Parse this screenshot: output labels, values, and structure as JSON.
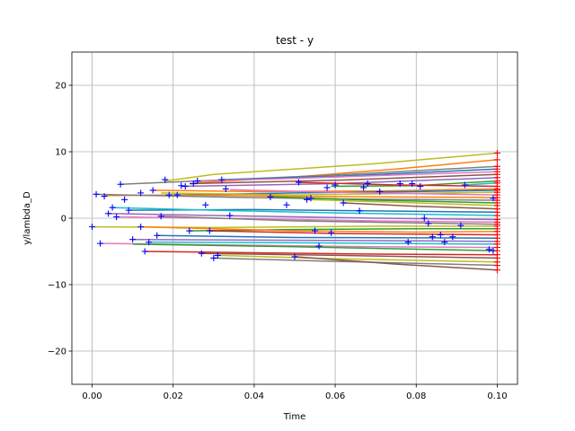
{
  "chart_data": {
    "type": "line",
    "title": "test - y",
    "xlabel": "Time",
    "ylabel": "y/lambda_D",
    "xlim": [
      -0.005,
      0.105
    ],
    "ylim": [
      -25,
      25
    ],
    "xticks": [
      0.0,
      0.02,
      0.04,
      0.06,
      0.08,
      0.1
    ],
    "xtick_labels": [
      "0.00",
      "0.02",
      "0.04",
      "0.06",
      "0.08",
      "0.10"
    ],
    "yticks": [
      -20,
      -10,
      0,
      10,
      20
    ],
    "ytick_labels": [
      "−20",
      "−10",
      "0",
      "10",
      "20"
    ],
    "grid": true,
    "marker_color": "#0000ff",
    "end_marker_color": "#ff0000",
    "series": [
      {
        "color": "#bcbd22",
        "points": [
          [
            0.018,
            5.6
          ],
          [
            0.03,
            6.6
          ],
          [
            0.05,
            7.4
          ],
          [
            0.07,
            8.2
          ],
          [
            0.085,
            9.0
          ],
          [
            0.1,
            9.8
          ]
        ]
      },
      {
        "color": "#ff7f0e",
        "points": [
          [
            0.025,
            5.3
          ],
          [
            0.05,
            6.2
          ],
          [
            0.075,
            7.4
          ],
          [
            0.1,
            8.8
          ]
        ]
      },
      {
        "color": "#7f7f7f",
        "points": [
          [
            0.007,
            5.1
          ],
          [
            0.03,
            5.7
          ],
          [
            0.06,
            6.5
          ],
          [
            0.1,
            7.8
          ]
        ]
      },
      {
        "color": "#1f77b4",
        "points": [
          [
            0.032,
            5.8
          ],
          [
            0.06,
            6.3
          ],
          [
            0.1,
            7.4
          ]
        ]
      },
      {
        "color": "#e377c2",
        "points": [
          [
            0.027,
            5.6
          ],
          [
            0.05,
            6.0
          ],
          [
            0.1,
            7.0
          ]
        ]
      },
      {
        "color": "#8c564b",
        "points": [
          [
            0.024,
            5.2
          ],
          [
            0.06,
            5.7
          ],
          [
            0.1,
            6.6
          ]
        ]
      },
      {
        "color": "#9467bd",
        "points": [
          [
            0.022,
            4.8
          ],
          [
            0.06,
            5.2
          ],
          [
            0.1,
            6.1
          ]
        ]
      },
      {
        "color": "#2ca02c",
        "points": [
          [
            0.059,
            4.8
          ],
          [
            0.08,
            4.9
          ],
          [
            0.1,
            5.6
          ]
        ]
      },
      {
        "color": "#17becf",
        "points": [
          [
            0.092,
            5.0
          ],
          [
            0.1,
            5.3
          ]
        ]
      },
      {
        "color": "#d62728",
        "points": [
          [
            0.051,
            5.4
          ],
          [
            0.075,
            5.0
          ],
          [
            0.1,
            4.8
          ]
        ]
      },
      {
        "color": "#ff7f0e",
        "points": [
          [
            0.015,
            4.2
          ],
          [
            0.04,
            4.0
          ],
          [
            0.07,
            4.1
          ],
          [
            0.1,
            4.4
          ]
        ]
      },
      {
        "color": "#1f77b4",
        "points": [
          [
            0.02,
            3.5
          ],
          [
            0.05,
            3.8
          ],
          [
            0.08,
            4.0
          ],
          [
            0.1,
            4.2
          ]
        ]
      },
      {
        "color": "#bcbd22",
        "points": [
          [
            0.017,
            3.8
          ],
          [
            0.05,
            3.5
          ],
          [
            0.1,
            3.9
          ]
        ]
      },
      {
        "color": "#e377c2",
        "points": [
          [
            0.034,
            4.3
          ],
          [
            0.06,
            3.9
          ],
          [
            0.1,
            3.5
          ]
        ]
      },
      {
        "color": "#ff7f0e",
        "points": [
          [
            0.003,
            3.4
          ],
          [
            0.02,
            3.5
          ],
          [
            0.05,
            3.3
          ],
          [
            0.1,
            3.1
          ]
        ]
      },
      {
        "color": "#7f7f7f",
        "points": [
          [
            0.001,
            3.6
          ],
          [
            0.03,
            3.2
          ],
          [
            0.06,
            2.9
          ],
          [
            0.1,
            2.7
          ]
        ]
      },
      {
        "color": "#2ca02c",
        "points": [
          [
            0.044,
            3.2
          ],
          [
            0.07,
            2.7
          ],
          [
            0.1,
            2.3
          ]
        ]
      },
      {
        "color": "#bcbd22",
        "points": [
          [
            0.053,
            2.8
          ],
          [
            0.08,
            2.3
          ],
          [
            0.1,
            1.9
          ]
        ]
      },
      {
        "color": "#8c564b",
        "points": [
          [
            0.062,
            2.3
          ],
          [
            0.08,
            1.8
          ],
          [
            0.1,
            1.4
          ]
        ]
      },
      {
        "color": "#1f77b4",
        "points": [
          [
            0.009,
            1.2
          ],
          [
            0.04,
            1.3
          ],
          [
            0.07,
            1.1
          ],
          [
            0.1,
            0.9
          ]
        ]
      },
      {
        "color": "#17becf",
        "points": [
          [
            0.005,
            1.6
          ],
          [
            0.03,
            1.2
          ],
          [
            0.06,
            0.8
          ],
          [
            0.1,
            0.4
          ]
        ]
      },
      {
        "color": "#9467bd",
        "points": [
          [
            0.004,
            0.7
          ],
          [
            0.03,
            0.4
          ],
          [
            0.07,
            0.0
          ],
          [
            0.1,
            -0.2
          ]
        ]
      },
      {
        "color": "#e377c2",
        "points": [
          [
            0.006,
            0.2
          ],
          [
            0.04,
            -0.1
          ],
          [
            0.07,
            -0.4
          ],
          [
            0.1,
            -0.6
          ]
        ]
      },
      {
        "color": "#7f7f7f",
        "points": [
          [
            0.017,
            0.3
          ],
          [
            0.05,
            -0.4
          ],
          [
            0.08,
            -0.7
          ],
          [
            0.1,
            -0.9
          ]
        ]
      },
      {
        "color": "#bcbd22",
        "points": [
          [
            0.0,
            -1.3
          ],
          [
            0.03,
            -1.4
          ],
          [
            0.07,
            -1.2
          ],
          [
            0.1,
            -1.2
          ]
        ]
      },
      {
        "color": "#2ca02c",
        "points": [
          [
            0.024,
            -1.9
          ],
          [
            0.05,
            -1.7
          ],
          [
            0.08,
            -1.6
          ],
          [
            0.1,
            -1.6
          ]
        ]
      },
      {
        "color": "#ff7f0e",
        "points": [
          [
            0.012,
            -1.3
          ],
          [
            0.05,
            -1.9
          ],
          [
            0.08,
            -2.1
          ],
          [
            0.1,
            -2.0
          ]
        ]
      },
      {
        "color": "#d62728",
        "points": [
          [
            0.029,
            -1.9
          ],
          [
            0.06,
            -2.3
          ],
          [
            0.1,
            -2.5
          ]
        ]
      },
      {
        "color": "#1f77b4",
        "points": [
          [
            0.016,
            -2.6
          ],
          [
            0.05,
            -2.9
          ],
          [
            0.1,
            -3.0
          ]
        ]
      },
      {
        "color": "#9467bd",
        "points": [
          [
            0.01,
            -3.2
          ],
          [
            0.04,
            -3.3
          ],
          [
            0.08,
            -3.4
          ],
          [
            0.1,
            -3.5
          ]
        ]
      },
      {
        "color": "#17becf",
        "points": [
          [
            0.014,
            -3.6
          ],
          [
            0.05,
            -3.7
          ],
          [
            0.1,
            -3.9
          ]
        ]
      },
      {
        "color": "#e377c2",
        "points": [
          [
            0.002,
            -3.8
          ],
          [
            0.03,
            -4.0
          ],
          [
            0.07,
            -4.3
          ],
          [
            0.1,
            -4.4
          ]
        ]
      },
      {
        "color": "#2ca02c",
        "points": [
          [
            0.01,
            -3.9
          ],
          [
            0.05,
            -4.3
          ],
          [
            0.1,
            -4.9
          ]
        ]
      },
      {
        "color": "#d62728",
        "points": [
          [
            0.013,
            -5.0
          ],
          [
            0.04,
            -5.2
          ],
          [
            0.07,
            -5.4
          ],
          [
            0.1,
            -5.5
          ]
        ]
      },
      {
        "color": "#8c564b",
        "points": [
          [
            0.027,
            -5.3
          ],
          [
            0.06,
            -5.6
          ],
          [
            0.1,
            -6.0
          ]
        ]
      },
      {
        "color": "#bcbd22",
        "points": [
          [
            0.031,
            -5.6
          ],
          [
            0.06,
            -6.1
          ],
          [
            0.1,
            -6.6
          ]
        ]
      },
      {
        "color": "#7f7f7f",
        "points": [
          [
            0.03,
            -6.0
          ],
          [
            0.06,
            -6.5
          ],
          [
            0.1,
            -7.1
          ]
        ]
      },
      {
        "color": "#8c564b",
        "points": [
          [
            0.05,
            -5.8
          ],
          [
            0.075,
            -6.9
          ],
          [
            0.1,
            -7.8
          ]
        ]
      }
    ],
    "markers": [
      [
        0.0,
        -1.3
      ],
      [
        0.001,
        3.6
      ],
      [
        0.002,
        -3.8
      ],
      [
        0.003,
        3.3
      ],
      [
        0.004,
        0.7
      ],
      [
        0.005,
        1.6
      ],
      [
        0.006,
        0.2
      ],
      [
        0.007,
        5.1
      ],
      [
        0.008,
        2.8
      ],
      [
        0.009,
        1.2
      ],
      [
        0.01,
        -3.2
      ],
      [
        0.012,
        3.8
      ],
      [
        0.012,
        -1.3
      ],
      [
        0.013,
        -5.0
      ],
      [
        0.014,
        -3.6
      ],
      [
        0.015,
        4.2
      ],
      [
        0.016,
        -2.6
      ],
      [
        0.017,
        0.3
      ],
      [
        0.018,
        5.8
      ],
      [
        0.019,
        3.5
      ],
      [
        0.021,
        3.5
      ],
      [
        0.022,
        4.9
      ],
      [
        0.023,
        4.8
      ],
      [
        0.024,
        -1.9
      ],
      [
        0.025,
        5.2
      ],
      [
        0.026,
        5.6
      ],
      [
        0.027,
        -5.3
      ],
      [
        0.028,
        2.0
      ],
      [
        0.029,
        -1.9
      ],
      [
        0.03,
        -6.0
      ],
      [
        0.031,
        -5.6
      ],
      [
        0.032,
        5.8
      ],
      [
        0.033,
        4.4
      ],
      [
        0.034,
        0.4
      ],
      [
        0.044,
        3.2
      ],
      [
        0.048,
        2.0
      ],
      [
        0.05,
        -5.8
      ],
      [
        0.051,
        5.4
      ],
      [
        0.053,
        2.8
      ],
      [
        0.054,
        3.0
      ],
      [
        0.055,
        -1.9
      ],
      [
        0.056,
        -4.2
      ],
      [
        0.058,
        4.6
      ],
      [
        0.059,
        -2.2
      ],
      [
        0.06,
        5.0
      ],
      [
        0.062,
        2.3
      ],
      [
        0.066,
        1.1
      ],
      [
        0.067,
        4.6
      ],
      [
        0.068,
        5.2
      ],
      [
        0.071,
        4.0
      ],
      [
        0.076,
        5.2
      ],
      [
        0.078,
        -3.6
      ],
      [
        0.079,
        5.2
      ],
      [
        0.081,
        4.8
      ],
      [
        0.082,
        0.0
      ],
      [
        0.083,
        -0.8
      ],
      [
        0.084,
        -2.8
      ],
      [
        0.086,
        -2.5
      ],
      [
        0.087,
        -3.6
      ],
      [
        0.089,
        -2.8
      ],
      [
        0.092,
        5.0
      ],
      [
        0.091,
        -1.1
      ],
      [
        0.098,
        -4.7
      ],
      [
        0.099,
        -4.9
      ],
      [
        0.099,
        3.0
      ]
    ]
  }
}
